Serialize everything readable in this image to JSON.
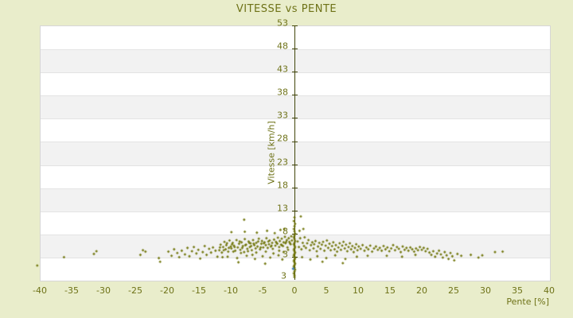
{
  "colors": {
    "background": "#e9edcb",
    "text": "#6e7217",
    "plot_background": "#ffffff",
    "band_alt": "#f2f2f2",
    "gridline": "#e3e3e3",
    "plot_border": "#d6d6d6",
    "axis_line": "#41450a",
    "point": "#70750a",
    "highlight_point": "#3f7cb6"
  },
  "chart_data": {
    "type": "scatter",
    "title": "VITESSE vs PENTE",
    "xlabel": "Pente [%]",
    "ylabel": "Vitesse [km/h]",
    "xlim": [
      -40,
      40
    ],
    "ylim": [
      -2,
      53
    ],
    "x_ticks": [
      -40,
      -35,
      -30,
      -25,
      -20,
      -15,
      -10,
      -5,
      0,
      5,
      10,
      15,
      20,
      25,
      30,
      35,
      40
    ],
    "y_ticks": [
      53,
      48,
      43,
      38,
      33,
      28,
      23,
      18,
      13,
      8,
      3
    ],
    "y_axis_min_label": "3",
    "grid": "horizontal-alternating-bands",
    "legend": "none",
    "axis_at_x": 0,
    "series": [
      {
        "name": "vitesse-vs-pente-points",
        "marker": "diamond",
        "color": "#70750a",
        "points": [
          [
            -40.4,
            1.1
          ],
          [
            -36.2,
            2.9
          ],
          [
            -31.5,
            3.6
          ],
          [
            -31.1,
            4.2
          ],
          [
            -24.2,
            3.4
          ],
          [
            -23.8,
            4.4
          ],
          [
            -23.4,
            4.1
          ],
          [
            -21.3,
            2.7
          ],
          [
            -21.1,
            1.9
          ],
          [
            -19.8,
            4.1
          ],
          [
            -19.3,
            3.2
          ],
          [
            -18.9,
            4.6
          ],
          [
            -18.4,
            3.8
          ],
          [
            -18.1,
            2.9
          ],
          [
            -17.7,
            4.3
          ],
          [
            -17.2,
            3.5
          ],
          [
            -16.8,
            4.9
          ],
          [
            -16.5,
            3.1
          ],
          [
            -16.1,
            4.2
          ],
          [
            -15.8,
            5.1
          ],
          [
            -15.4,
            3.7
          ],
          [
            -15.1,
            4.5
          ],
          [
            -14.8,
            2.6
          ],
          [
            -14.4,
            4.0
          ],
          [
            -14.1,
            5.3
          ],
          [
            -13.8,
            3.4
          ],
          [
            -13.4,
            4.7
          ],
          [
            -13.1,
            3.9
          ],
          [
            -12.8,
            5.0
          ],
          [
            -12.4,
            4.3
          ],
          [
            -12.1,
            3.0
          ],
          [
            -11.8,
            4.4
          ],
          [
            -11.6,
            5.6
          ],
          [
            -11.4,
            3.9
          ],
          [
            -11.2,
            5.1
          ],
          [
            -11.0,
            6.2
          ],
          [
            -10.8,
            4.6
          ],
          [
            -10.6,
            5.9
          ],
          [
            -10.4,
            4.1
          ],
          [
            -10.2,
            6.5
          ],
          [
            -10.0,
            5.2
          ],
          [
            -9.9,
            4.8
          ],
          [
            -9.7,
            6.0
          ],
          [
            -9.5,
            5.4
          ],
          [
            -9.3,
            4.3
          ],
          [
            -9.1,
            6.6
          ],
          [
            -8.9,
            5.0
          ],
          [
            -8.7,
            5.8
          ],
          [
            -8.5,
            4.5
          ],
          [
            -8.3,
            6.1
          ],
          [
            -8.1,
            5.3
          ],
          [
            -7.9,
            4.0
          ],
          [
            -7.8,
            6.8
          ],
          [
            -7.6,
            5.6
          ],
          [
            -7.4,
            4.7
          ],
          [
            -7.2,
            6.3
          ],
          [
            -7.0,
            5.1
          ],
          [
            -6.9,
            5.9
          ],
          [
            -6.7,
            4.4
          ],
          [
            -6.5,
            6.6
          ],
          [
            -6.3,
            5.5
          ],
          [
            -6.1,
            4.8
          ],
          [
            -6.0,
            6.0
          ],
          [
            -5.8,
            5.2
          ],
          [
            -5.6,
            6.9
          ],
          [
            -5.4,
            4.6
          ],
          [
            -5.2,
            5.8
          ],
          [
            -5.1,
            6.4
          ],
          [
            -4.9,
            5.0
          ],
          [
            -4.7,
            6.1
          ],
          [
            -4.5,
            5.5
          ],
          [
            -4.4,
            7.0
          ],
          [
            -4.2,
            4.9
          ],
          [
            -4.0,
            5.7
          ],
          [
            -3.9,
            6.5
          ],
          [
            -3.7,
            5.2
          ],
          [
            -3.5,
            6.0
          ],
          [
            -3.4,
            4.7
          ],
          [
            -3.2,
            6.7
          ],
          [
            -3.0,
            5.4
          ],
          [
            -2.9,
            6.2
          ],
          [
            -2.7,
            5.8
          ],
          [
            -2.6,
            7.1
          ],
          [
            -2.4,
            5.1
          ],
          [
            -2.3,
            6.4
          ],
          [
            -2.1,
            5.6
          ],
          [
            -2.0,
            6.9
          ],
          [
            -1.8,
            5.3
          ],
          [
            -1.7,
            6.1
          ],
          [
            -1.5,
            7.3
          ],
          [
            -1.4,
            5.9
          ],
          [
            -1.2,
            6.6
          ],
          [
            -1.1,
            5.0
          ],
          [
            -0.9,
            7.0
          ],
          [
            -0.8,
            6.2
          ],
          [
            -0.6,
            5.7
          ],
          [
            -0.5,
            7.4
          ],
          [
            -0.4,
            6.5
          ],
          [
            -11.7,
            5.0
          ],
          [
            -11.1,
            4.4
          ],
          [
            -10.7,
            5.5
          ],
          [
            -10.3,
            4.9
          ],
          [
            -9.8,
            5.7
          ],
          [
            -9.4,
            5.1
          ],
          [
            -8.6,
            6.3
          ],
          [
            -8.2,
            4.9
          ],
          [
            -7.7,
            5.5
          ],
          [
            -7.1,
            6.0
          ],
          [
            -6.8,
            5.3
          ],
          [
            -6.4,
            5.8
          ],
          [
            -5.7,
            6.3
          ],
          [
            -5.3,
            5.0
          ],
          [
            -4.8,
            5.9
          ],
          [
            -4.1,
            6.3
          ],
          [
            -3.6,
            5.4
          ],
          [
            -2.8,
            6.0
          ],
          [
            -2.0,
            5.5
          ],
          [
            -1.3,
            6.2
          ],
          [
            -0.7,
            5.9
          ],
          [
            -9.6,
            4.1
          ],
          [
            -8.4,
            3.8
          ],
          [
            -7.3,
            4.2
          ],
          [
            -6.0,
            3.9
          ],
          [
            -4.5,
            4.1
          ],
          [
            -3.3,
            3.7
          ],
          [
            -2.4,
            4.3
          ],
          [
            -1.7,
            4.0
          ],
          [
            -1.0,
            4.5
          ],
          [
            -10.5,
            3.0
          ],
          [
            -9.0,
            2.7
          ],
          [
            -7.5,
            3.2
          ],
          [
            -6.2,
            2.5
          ],
          [
            -5.0,
            3.1
          ],
          [
            -3.8,
            2.8
          ],
          [
            -2.5,
            3.3
          ],
          [
            -1.9,
            2.4
          ],
          [
            -8.8,
            1.8
          ],
          [
            -4.6,
            1.5
          ],
          [
            -6.6,
            3.4
          ],
          [
            -11.3,
            2.9
          ],
          [
            -7.8,
            8.4
          ],
          [
            -5.9,
            8.2
          ],
          [
            -4.3,
            8.6
          ],
          [
            -3.1,
            8.1
          ],
          [
            -2.2,
            8.8
          ],
          [
            -1.6,
            9.0
          ],
          [
            -7.9,
            11.0
          ],
          [
            -9.9,
            8.3
          ],
          [
            0,
            11.5
          ],
          [
            -0.1,
            10.7
          ],
          [
            0.1,
            10.1
          ],
          [
            0,
            9.6
          ],
          [
            -0.1,
            9.0
          ],
          [
            0,
            8.5
          ],
          [
            0.1,
            8.0
          ],
          [
            0,
            7.6
          ],
          [
            -0.1,
            7.2
          ],
          [
            0,
            6.8
          ],
          [
            0.1,
            6.4
          ],
          [
            0,
            6.0
          ],
          [
            -0.1,
            5.7
          ],
          [
            0,
            5.4
          ],
          [
            0.1,
            5.1
          ],
          [
            0,
            4.8
          ],
          [
            -0.1,
            4.5
          ],
          [
            0,
            4.2
          ],
          [
            0.1,
            3.9
          ],
          [
            0,
            3.6
          ],
          [
            -0.1,
            3.3
          ],
          [
            0,
            3.0
          ],
          [
            0.1,
            2.7
          ],
          [
            0,
            2.4
          ],
          [
            -0.1,
            2.1
          ],
          [
            0,
            1.8
          ],
          [
            0.1,
            1.5
          ],
          [
            0,
            1.2
          ],
          [
            -0.1,
            0.9
          ],
          [
            0,
            0.6
          ],
          [
            0.1,
            0.2
          ],
          [
            0,
            -0.2
          ],
          [
            -0.1,
            -0.6
          ],
          [
            0,
            -1.0
          ],
          [
            0,
            -1.4
          ],
          [
            0.5,
            6.3
          ],
          [
            0.7,
            5.1
          ],
          [
            0.8,
            8.6
          ],
          [
            0.9,
            7.0
          ],
          [
            1.0,
            11.7
          ],
          [
            1.1,
            4.6
          ],
          [
            1.3,
            6.0
          ],
          [
            1.4,
            9.0
          ],
          [
            1.5,
            5.3
          ],
          [
            1.6,
            7.2
          ],
          [
            1.8,
            4.9
          ],
          [
            2.0,
            5.9
          ],
          [
            2.2,
            6.6
          ],
          [
            2.4,
            4.4
          ],
          [
            2.6,
            5.5
          ],
          [
            2.8,
            6.1
          ],
          [
            3.0,
            4.8
          ],
          [
            3.1,
            5.7
          ],
          [
            3.3,
            6.4
          ],
          [
            3.5,
            4.2
          ],
          [
            3.7,
            5.2
          ],
          [
            3.9,
            6.0
          ],
          [
            4.1,
            4.7
          ],
          [
            4.3,
            5.6
          ],
          [
            4.5,
            6.2
          ],
          [
            4.7,
            4.3
          ],
          [
            4.9,
            5.4
          ],
          [
            5.1,
            6.5
          ],
          [
            5.3,
            4.9
          ],
          [
            5.5,
            5.8
          ],
          [
            5.7,
            4.4
          ],
          [
            5.9,
            5.3
          ],
          [
            6.1,
            6.1
          ],
          [
            6.3,
            4.6
          ],
          [
            6.5,
            5.5
          ],
          [
            6.7,
            4.1
          ],
          [
            6.9,
            5.0
          ],
          [
            7.1,
            5.9
          ],
          [
            7.3,
            4.5
          ],
          [
            7.5,
            5.4
          ],
          [
            7.7,
            6.2
          ],
          [
            7.9,
            4.8
          ],
          [
            8.1,
            5.6
          ],
          [
            8.3,
            4.2
          ],
          [
            8.5,
            5.1
          ],
          [
            8.7,
            5.9
          ],
          [
            8.9,
            4.6
          ],
          [
            9.1,
            5.3
          ],
          [
            9.3,
            4.0
          ],
          [
            9.5,
            4.9
          ],
          [
            9.7,
            5.7
          ],
          [
            9.9,
            4.4
          ],
          [
            10.1,
            5.2
          ],
          [
            10.4,
            4.7
          ],
          [
            10.7,
            5.5
          ],
          [
            11.0,
            4.3
          ],
          [
            11.3,
            5.0
          ],
          [
            11.6,
            4.6
          ],
          [
            11.9,
            5.4
          ],
          [
            12.2,
            4.1
          ],
          [
            12.5,
            4.8
          ],
          [
            12.8,
            5.2
          ],
          [
            13.1,
            4.5
          ],
          [
            1.2,
            2.9
          ],
          [
            2.5,
            2.4
          ],
          [
            3.6,
            3.1
          ],
          [
            5.0,
            2.7
          ],
          [
            6.4,
            3.3
          ],
          [
            8.0,
            2.5
          ],
          [
            9.8,
            3.0
          ],
          [
            11.5,
            3.2
          ],
          [
            4.4,
            1.9
          ],
          [
            7.6,
            1.6
          ],
          [
            13.4,
            4.9
          ],
          [
            13.7,
            4.3
          ],
          [
            14.0,
            5.3
          ],
          [
            14.3,
            4.6
          ],
          [
            14.6,
            5.0
          ],
          [
            14.9,
            4.2
          ],
          [
            15.2,
            4.8
          ],
          [
            15.5,
            5.5
          ],
          [
            15.8,
            4.4
          ],
          [
            16.1,
            5.1
          ],
          [
            16.4,
            4.7
          ],
          [
            16.7,
            4.0
          ],
          [
            17.0,
            5.2
          ],
          [
            17.3,
            4.5
          ],
          [
            17.6,
            4.9
          ],
          [
            17.9,
            4.3
          ],
          [
            18.2,
            5.0
          ],
          [
            18.5,
            4.6
          ],
          [
            18.8,
            4.1
          ],
          [
            19.1,
            4.8
          ],
          [
            19.4,
            4.4
          ],
          [
            19.7,
            5.1
          ],
          [
            20.0,
            4.5
          ],
          [
            20.3,
            4.9
          ],
          [
            20.6,
            4.2
          ],
          [
            20.9,
            4.7
          ],
          [
            14.5,
            3.2
          ],
          [
            16.9,
            3.0
          ],
          [
            19.0,
            3.4
          ],
          [
            21.2,
            3.9
          ],
          [
            21.5,
            3.4
          ],
          [
            21.8,
            4.2
          ],
          [
            22.1,
            3.0
          ],
          [
            22.4,
            3.7
          ],
          [
            22.7,
            4.3
          ],
          [
            23.0,
            3.5
          ],
          [
            23.3,
            2.8
          ],
          [
            23.6,
            4.0
          ],
          [
            23.9,
            3.3
          ],
          [
            24.2,
            2.5
          ],
          [
            24.5,
            3.8
          ],
          [
            24.8,
            3.1
          ],
          [
            25.1,
            2.2
          ],
          [
            25.6,
            3.6
          ],
          [
            26.2,
            3.2
          ],
          [
            27.7,
            3.4
          ],
          [
            28.9,
            2.8
          ],
          [
            29.5,
            3.3
          ],
          [
            31.5,
            4.0
          ],
          [
            32.7,
            4.1
          ]
        ]
      }
    ],
    "highlight_point": {
      "x": -0.2,
      "y": 0.4,
      "color": "#3f7cb6"
    }
  }
}
